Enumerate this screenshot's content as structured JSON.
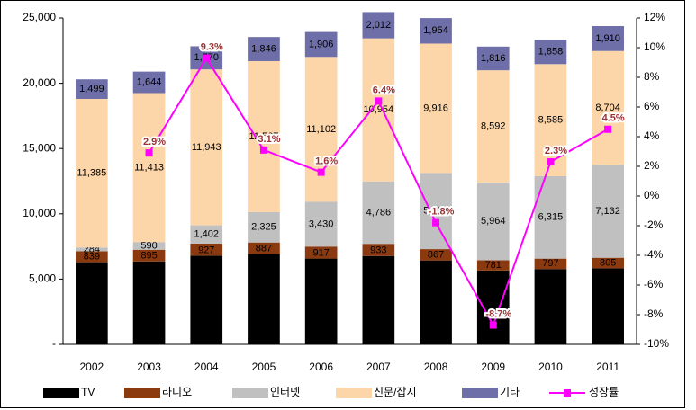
{
  "chart_data": {
    "type": "bar",
    "categories": [
      "2002",
      "2003",
      "2004",
      "2005",
      "2006",
      "2007",
      "2008",
      "2009",
      "2010",
      "2011"
    ],
    "series": [
      {
        "name": "TV",
        "color": "#000000",
        "values": [
          6294,
          6352,
          6791,
          6917,
          6571,
          6767,
          6428,
          5657,
          5770,
          5828
        ],
        "value_labels": [
          "6,294",
          "6,352",
          "6,791",
          "6,917",
          "6,571",
          "6,767",
          "6,428",
          "5,657",
          "5,770",
          "5,828"
        ]
      },
      {
        "name": "라디오",
        "color": "#8b3a0f",
        "values": [
          839,
          895,
          927,
          887,
          917,
          933,
          867,
          781,
          797,
          805
        ]
      },
      {
        "name": "인터넷",
        "color": "#c0c0c0",
        "values": [
          284,
          590,
          1402,
          2325,
          3430,
          4786,
          5828,
          5964,
          6315,
          7132
        ],
        "value_labels": [
          "284",
          "590",
          "1,402",
          "2,325",
          "3,430",
          "4,786",
          "5,828",
          "5,964",
          "6,315",
          "7,132"
        ]
      },
      {
        "name": "신문/잡지",
        "color": "#fcd5a8",
        "values": [
          11385,
          11413,
          11943,
          11567,
          11102,
          10954,
          9916,
          8592,
          8585,
          8704
        ],
        "value_labels": [
          "11,385",
          "11,413",
          "11,943",
          "11,567",
          "11,102",
          "10,954",
          "9,916",
          "8,592",
          "8,585",
          "8,704"
        ]
      },
      {
        "name": "기타",
        "color": "#6e6ea8",
        "values": [
          1499,
          1644,
          1770,
          1846,
          1906,
          2012,
          1954,
          1816,
          1858,
          1910
        ],
        "value_labels": [
          "1,499",
          "1,644",
          "1,770",
          "1,846",
          "1,906",
          "2,012",
          "1,954",
          "1,816",
          "1,858",
          "1,910"
        ]
      },
      {
        "name": "성장률",
        "type": "line",
        "axis": "y2",
        "color": "#ff00ff",
        "values": [
          null,
          2.9,
          9.3,
          3.1,
          1.6,
          6.4,
          -1.8,
          -8.7,
          2.3,
          4.5
        ],
        "value_labels": [
          null,
          "2.9%",
          "9.3%",
          "3.1%",
          "1.6%",
          "6.4%",
          "-1.8%",
          "-8.7%",
          "2.3%",
          "4.5%"
        ]
      }
    ],
    "ylim": [
      0,
      25000
    ],
    "yticks": [
      {
        "value": 0,
        "label": "-"
      },
      {
        "value": 5000,
        "label": "5,000"
      },
      {
        "value": 10000,
        "label": "10,000"
      },
      {
        "value": 15000,
        "label": "15,000"
      },
      {
        "value": 20000,
        "label": "20,000"
      },
      {
        "value": 25000,
        "label": "25,000"
      }
    ],
    "y2lim": [
      -10,
      12
    ],
    "y2ticks": [
      {
        "value": -10,
        "label": "-10%"
      },
      {
        "value": -8,
        "label": "-8%"
      },
      {
        "value": -6,
        "label": "-6%"
      },
      {
        "value": -4,
        "label": "-4%"
      },
      {
        "value": -2,
        "label": "-2%"
      },
      {
        "value": 0,
        "label": "0%"
      },
      {
        "value": 2,
        "label": "2%"
      },
      {
        "value": 4,
        "label": "4%"
      },
      {
        "value": 6,
        "label": "6%"
      },
      {
        "value": 8,
        "label": "8%"
      },
      {
        "value": 10,
        "label": "10%"
      },
      {
        "value": 12,
        "label": "12%"
      }
    ],
    "legend": "bottom"
  }
}
